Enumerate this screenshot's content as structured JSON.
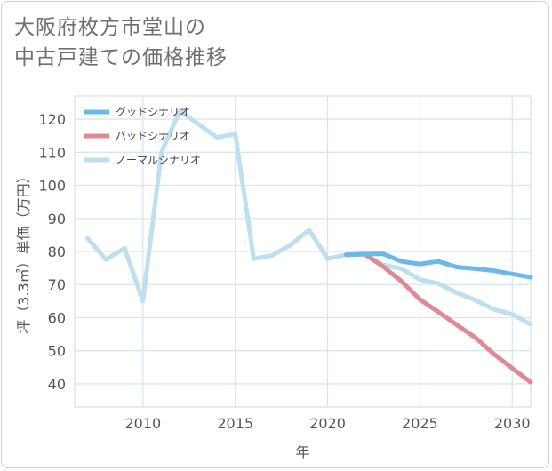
{
  "title": "大阪府枚方市堂山の\n中古戸建ての価格推移",
  "chart_data": {
    "type": "line",
    "xlabel": "年",
    "ylabel": "坪（3.3㎡）単価（万円）",
    "xlim": [
      2006.3,
      2031
    ],
    "ylim": [
      33,
      127
    ],
    "x_ticks": [
      2010,
      2015,
      2020,
      2025,
      2030
    ],
    "y_ticks": [
      40,
      50,
      60,
      70,
      80,
      90,
      100,
      110,
      120
    ],
    "grid": true,
    "legend_position": "top-left",
    "series": [
      {
        "name": "グッドシナリオ",
        "color": "#6bb8ec",
        "x": [
          2021,
          2022,
          2023,
          2024,
          2025,
          2026,
          2027,
          2028,
          2029,
          2030,
          2031
        ],
        "y": [
          79,
          79.2,
          79.3,
          77,
          76.2,
          77,
          75.3,
          74.8,
          74.2,
          73.2,
          72.2
        ]
      },
      {
        "name": "バッドシナリオ",
        "color": "#dd8a94",
        "x": [
          2021,
          2022,
          2023,
          2024,
          2025,
          2026,
          2027,
          2028,
          2029,
          2030,
          2031
        ],
        "y": [
          79,
          79.2,
          75.5,
          71,
          65.5,
          61.7,
          57.8,
          54,
          49,
          44.7,
          40.5
        ]
      },
      {
        "name": "ノーマルシナリオ",
        "color": "#bddff0",
        "x": [
          2007,
          2008,
          2009,
          2010,
          2011,
          2012,
          2013,
          2014,
          2015,
          2016,
          2017,
          2018,
          2019,
          2020,
          2021,
          2022,
          2023,
          2024,
          2025,
          2026,
          2027,
          2028,
          2029,
          2030,
          2031
        ],
        "y": [
          84,
          77.5,
          81,
          65,
          110,
          122.5,
          118.5,
          114.5,
          115.5,
          77.8,
          78.8,
          82,
          86.5,
          77.8,
          79,
          79.2,
          76,
          74.8,
          71.5,
          70.3,
          67.5,
          65.3,
          62.5,
          61,
          58
        ]
      }
    ]
  }
}
